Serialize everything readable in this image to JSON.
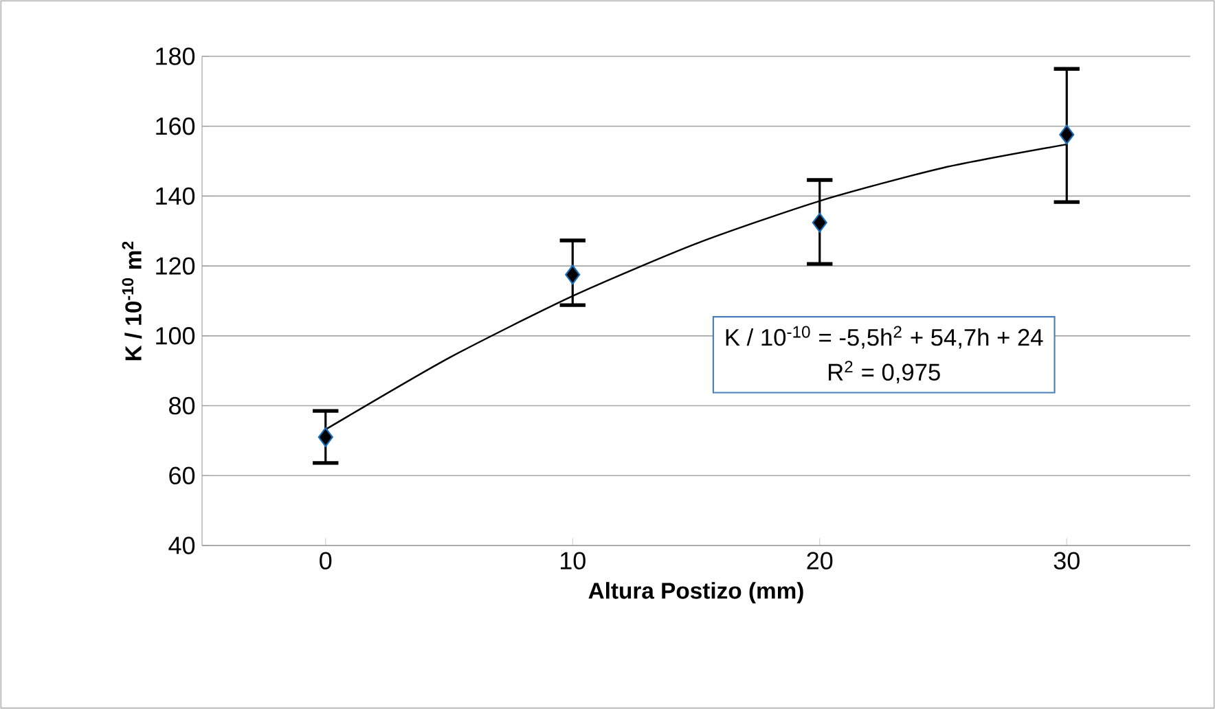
{
  "chart_data": {
    "type": "scatter",
    "xlabel": "Altura Postizo (mm)",
    "ylabel": "K / 10$^{-10}$ m$^{2}$",
    "x": [
      0,
      10,
      20,
      30
    ],
    "xlim": [
      -5,
      35
    ],
    "xticks": [
      0,
      10,
      20,
      30
    ],
    "ylim": [
      40,
      180
    ],
    "yticks": [
      40,
      60,
      80,
      100,
      120,
      140,
      160,
      180
    ],
    "grid": "y",
    "marker": "diamond",
    "series": [
      {
        "color": "#000000",
        "values": [
          71,
          117.5,
          132.4,
          157.6
        ],
        "errors": [
          [
            63.6,
            78.5
          ],
          [
            108.8,
            127.3
          ],
          [
            120.6,
            144.6
          ],
          [
            138.3,
            176.4
          ]
        ]
      },
      {
        "type": "line",
        "color": "#000000",
        "marker": "none",
        "x": [
          0,
          5,
          10,
          15,
          20,
          25,
          30
        ],
        "values": [
          73.2,
          93.7,
          111.4,
          126.4,
          138.6,
          148.1,
          154.8
        ]
      }
    ],
    "annotations": [
      "K / 10$^{-10}$ = -5,5h$^{2}$ + 54,7h + 24",
      "R$^{2}$ = 0,975"
    ]
  }
}
